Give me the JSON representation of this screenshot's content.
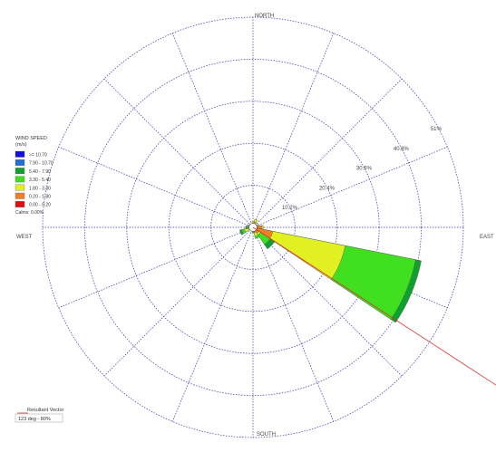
{
  "chart_data": {
    "type": "wind-rose",
    "title": "",
    "directions": {
      "north": "NORTH",
      "east": "EAST",
      "south": "SOUTH",
      "west": "WEST"
    },
    "ring_values": [
      10.2,
      20.4,
      30.6,
      40.8,
      51
    ],
    "ring_labels": [
      "10.2%",
      "20.4%",
      "30.6%",
      "40.8%",
      "51%"
    ],
    "sectors_count": 16,
    "sector_width_deg": 22.5,
    "legend": {
      "title_line1": "WIND SPEED",
      "title_line2": "(m/s)",
      "bins": [
        {
          "label": ">= 10.70",
          "color": "#1010e0"
        },
        {
          "label": "7.90 - 10.70",
          "color": "#2070d8"
        },
        {
          "label": "5.40 - 7.90",
          "color": "#10a030"
        },
        {
          "label": "3.30 - 5.40",
          "color": "#40e020"
        },
        {
          "label": "1.80 - 3.30",
          "color": "#e0f020"
        },
        {
          "label": "0.20 - 1.80",
          "color": "#f08020"
        },
        {
          "label": "0.00 - 0.20",
          "color": "#e01010"
        }
      ],
      "calms": "Calms: 0.00%"
    },
    "sectors": [
      {
        "direction_deg": 0,
        "stacks": [
          0,
          0,
          0,
          0,
          0.4,
          1.0,
          0
        ]
      },
      {
        "direction_deg": 22.5,
        "stacks": [
          0,
          0,
          0,
          0,
          0.6,
          1.4,
          0
        ]
      },
      {
        "direction_deg": 45,
        "stacks": [
          0,
          0,
          0,
          0,
          0.2,
          0.8,
          0
        ]
      },
      {
        "direction_deg": 67.5,
        "stacks": [
          0,
          0,
          0,
          0,
          0.3,
          1.2,
          0
        ]
      },
      {
        "direction_deg": 90,
        "stacks": [
          0,
          0,
          0,
          0,
          0.3,
          2.2,
          0
        ]
      },
      {
        "direction_deg": 112.5,
        "stacks": [
          0,
          0,
          1.4,
          17.4,
          17.9,
          4.9,
          0
        ]
      },
      {
        "direction_deg": 135,
        "stacks": [
          0,
          0,
          1.3,
          2.8,
          0.5,
          1.7,
          0
        ]
      },
      {
        "direction_deg": 157.5,
        "stacks": [
          0,
          0,
          0,
          0.6,
          0.9,
          1.3,
          0
        ]
      },
      {
        "direction_deg": 180,
        "stacks": [
          0,
          0,
          0,
          0.2,
          0.3,
          0.8,
          0
        ]
      },
      {
        "direction_deg": 202.5,
        "stacks": [
          0,
          0,
          0,
          0.2,
          0.2,
          0.6,
          0
        ]
      },
      {
        "direction_deg": 225,
        "stacks": [
          0,
          0,
          0,
          0,
          0.4,
          0.5,
          0
        ]
      },
      {
        "direction_deg": 247.5,
        "stacks": [
          0,
          0,
          0.5,
          0.7,
          1.2,
          0.9,
          0
        ]
      },
      {
        "direction_deg": 270,
        "stacks": [
          0,
          0,
          0.4,
          0.3,
          0.3,
          0.8,
          0
        ]
      },
      {
        "direction_deg": 292.5,
        "stacks": [
          0,
          0,
          0,
          0.2,
          0.3,
          0.7,
          0
        ]
      },
      {
        "direction_deg": 315,
        "stacks": [
          0,
          0,
          0,
          0,
          0.4,
          0.7,
          0
        ]
      },
      {
        "direction_deg": 337.5,
        "stacks": [
          0,
          0,
          0,
          0,
          0.3,
          0.6,
          0
        ]
      }
    ],
    "resultant_vector": {
      "label": "Resultant Vector",
      "value_text": "123 deg - 80%",
      "direction_deg": 123,
      "color": "#e03030"
    }
  }
}
